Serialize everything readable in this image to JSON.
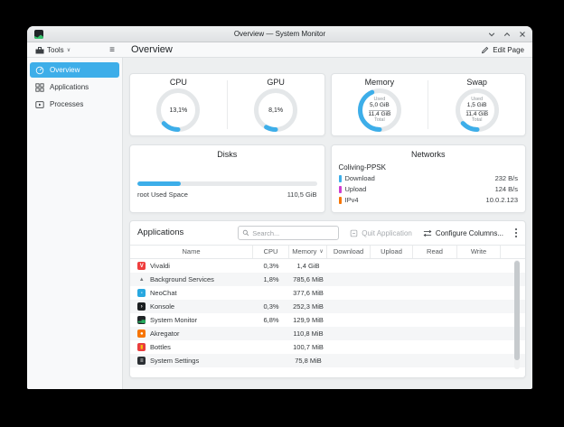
{
  "window": {
    "title": "Overview — System Monitor"
  },
  "colors": {
    "accent": "#3daee9",
    "selected_bg": "#3daee9",
    "download": "#3daee9",
    "upload": "#cf3ccf",
    "ipv4": "#f67400"
  },
  "icons": {
    "hamburger": "≡",
    "chevron_down": "∨",
    "sort_indicator": "∨"
  },
  "toolbar": {
    "tools_label": "Tools",
    "page_title": "Overview",
    "edit_page_label": "Edit Page"
  },
  "sidebar": {
    "items": [
      {
        "label": "Overview",
        "selected": true
      },
      {
        "label": "Applications",
        "selected": false
      },
      {
        "label": "Processes",
        "selected": false
      }
    ]
  },
  "gauges": [
    {
      "title": "CPU",
      "percent": 13.1,
      "label": "13,1%"
    },
    {
      "title": "GPU",
      "percent": 8.1,
      "label": "8,1%"
    }
  ],
  "mem_gauges": [
    {
      "title": "Memory",
      "used_label": "Used",
      "used": "5,0 GiB",
      "total": "11,4 GiB",
      "total_label": "Total",
      "percent": 43.9
    },
    {
      "title": "Swap",
      "used_label": "Used",
      "used": "1,5 GiB",
      "total": "11,4 GiB",
      "total_label": "Total",
      "percent": 13.2
    }
  ],
  "disks": {
    "title": "Disks",
    "bar_percent": 24,
    "label": "root Used Space",
    "value": "110,5 GiB"
  },
  "networks": {
    "title": "Networks",
    "group": "Coliving-PPSK",
    "rows": [
      {
        "label": "Download",
        "value": "232 B/s",
        "color": "#3daee9"
      },
      {
        "label": "Upload",
        "value": "124 B/s",
        "color": "#cf3ccf"
      },
      {
        "label": "IPv4",
        "value": "10.0.2.123",
        "color": "#f67400"
      }
    ]
  },
  "applications": {
    "title": "Applications",
    "search_placeholder": "Search...",
    "quit_label": "Quit Application",
    "configure_label": "Configure Columns...",
    "columns": {
      "name": "Name",
      "cpu": "CPU",
      "memory": "Memory",
      "download": "Download",
      "upload": "Upload",
      "read": "Read",
      "write": "Write"
    },
    "sort_column": "Memory",
    "rows": [
      {
        "name": "Vivaldi",
        "cpu": "0,3%",
        "memory": "1,4 GiB",
        "icon_bg": "#ef3e3e",
        "icon_glyph": "V",
        "icon_color": "#ffffff"
      },
      {
        "name": "Background Services",
        "cpu": "1,8%",
        "memory": "785,6 MiB",
        "icon_bg": "transparent",
        "icon_glyph": "▲",
        "icon_color": "#75797d"
      },
      {
        "name": "NeoChat",
        "cpu": "",
        "memory": "377,6 MiB",
        "icon_bg": "#29a8e0",
        "icon_glyph": "-",
        "icon_color": "#ffffff"
      },
      {
        "name": "Konsole",
        "cpu": "0,3%",
        "memory": "252,3 MiB",
        "icon_bg": "#1b1e20",
        "icon_glyph": "›",
        "icon_color": "#ffffff"
      },
      {
        "name": "System Monitor",
        "cpu": "6,8%",
        "memory": "129,9 MiB",
        "icon_bg": "#202427",
        "icon_glyph": "▂▄",
        "icon_color": "#27ae60"
      },
      {
        "name": "Akregator",
        "cpu": "",
        "memory": "110,8 MiB",
        "icon_bg": "#f67400",
        "icon_glyph": "●",
        "icon_color": "#ffffff"
      },
      {
        "name": "Bottles",
        "cpu": "",
        "memory": "100,7 MiB",
        "icon_bg": "#e93d3d",
        "icon_glyph": "▮",
        "icon_color": "#f5c211"
      },
      {
        "name": "System Settings",
        "cpu": "",
        "memory": "75,8 MiB",
        "icon_bg": "#2b2f33",
        "icon_glyph": "≡",
        "icon_color": "#ffffff"
      }
    ]
  }
}
